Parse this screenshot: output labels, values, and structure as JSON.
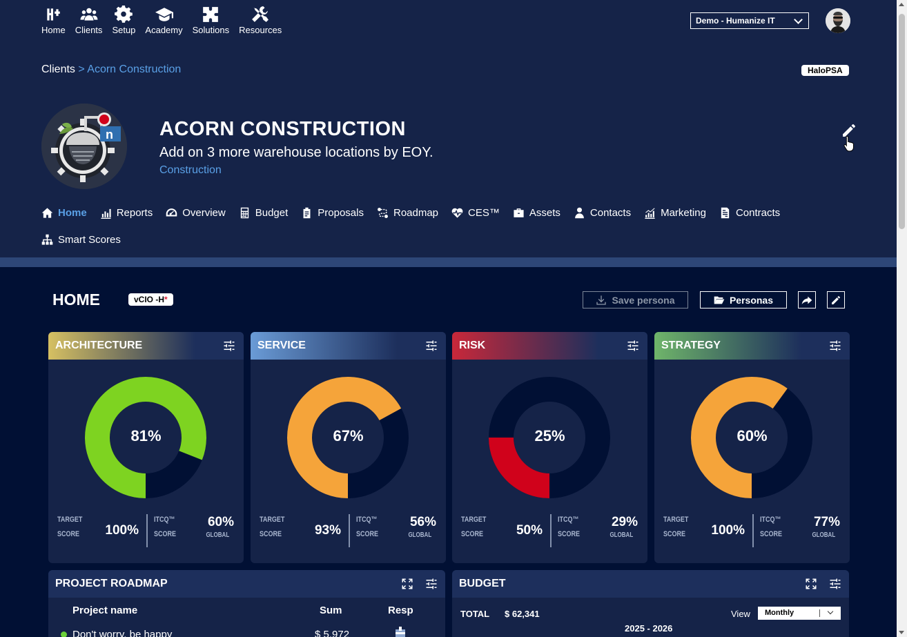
{
  "nav": [
    {
      "label": "Home",
      "icon": "home-logo-icon"
    },
    {
      "label": "Clients",
      "icon": "users-icon"
    },
    {
      "label": "Setup",
      "icon": "gear-icon"
    },
    {
      "label": "Academy",
      "icon": "graduation-cap-icon"
    },
    {
      "label": "Solutions",
      "icon": "puzzle-icon"
    },
    {
      "label": "Resources",
      "icon": "tools-icon"
    }
  ],
  "tenant": {
    "selected": "Demo - Humanize IT"
  },
  "breadcrumb": {
    "root": "Clients",
    "separator": ">",
    "current": "Acorn Construction"
  },
  "psa_badge": "HaloPSA",
  "client": {
    "name": "ACORN CONSTRUCTION",
    "goal": "Add on 3 more warehouse locations by EOY.",
    "industry": "Construction"
  },
  "tabs": [
    {
      "label": "Home",
      "icon": "home-icon",
      "active": true
    },
    {
      "label": "Reports",
      "icon": "bar-chart-icon"
    },
    {
      "label": "Overview",
      "icon": "gauge-icon"
    },
    {
      "label": "Budget",
      "icon": "calculator-icon"
    },
    {
      "label": "Proposals",
      "icon": "clipboard-icon"
    },
    {
      "label": "Roadmap",
      "icon": "route-icon"
    },
    {
      "label": "CES™",
      "icon": "heart-pulse-icon"
    },
    {
      "label": "Assets",
      "icon": "briefcase-icon"
    },
    {
      "label": "Contacts",
      "icon": "person-icon"
    },
    {
      "label": "Marketing",
      "icon": "chart-up-icon"
    },
    {
      "label": "Contracts",
      "icon": "document-icon"
    },
    {
      "label": "Smart Scores",
      "icon": "hierarchy-icon"
    }
  ],
  "home": {
    "title": "HOME",
    "persona_badge": "vCIO -H",
    "persona_badge_mark": "*",
    "save_persona": "Save persona",
    "personas": "Personas"
  },
  "labels": {
    "target": "TARGET",
    "score": "SCORE",
    "itcq": "ITCQ™",
    "global": "GLOBAL"
  },
  "scores": [
    {
      "title": "ARCHITECTURE",
      "value": 81,
      "value_label": "81%",
      "target": "100%",
      "global": "60%",
      "color": "#7ed321",
      "gradient": "#d6c062"
    },
    {
      "title": "SERVICE",
      "value": 67,
      "value_label": "67%",
      "target": "93%",
      "global": "56%",
      "color": "#f5a43a",
      "gradient": "#6a9bd6"
    },
    {
      "title": "RISK",
      "value": 25,
      "value_label": "25%",
      "target": "50%",
      "global": "29%",
      "color": "#d0021b",
      "gradient": "#c8283a"
    },
    {
      "title": "STRATEGY",
      "value": 60,
      "value_label": "60%",
      "target": "100%",
      "global": "77%",
      "color": "#f5a43a",
      "gradient": "#6fb56a"
    }
  ],
  "roadmap": {
    "title": "PROJECT ROADMAP",
    "columns": [
      "Project name",
      "Sum",
      "Resp"
    ],
    "rows": [
      {
        "name": "Don't worry, be happy",
        "sum": "$ 5,972"
      }
    ]
  },
  "budget": {
    "title": "BUDGET",
    "total_label": "TOTAL",
    "total_value": "$  62,341",
    "view_label": "View",
    "view_selected": "Monthly",
    "year": "2025 - 2026"
  }
}
